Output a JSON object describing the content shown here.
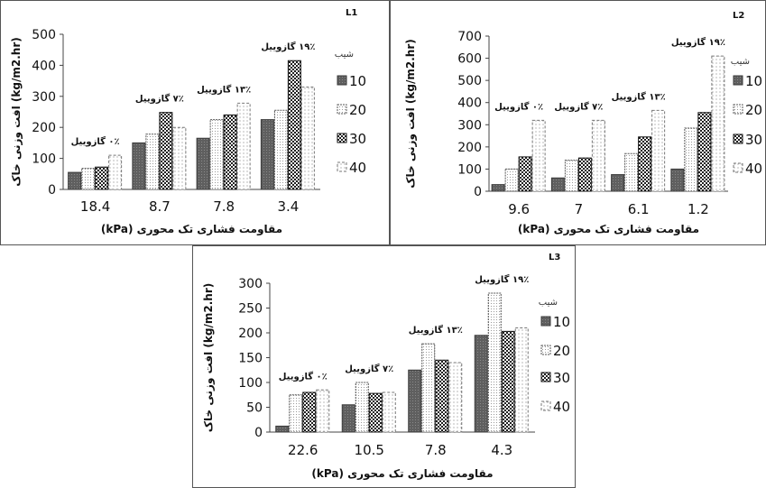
{
  "chart_data": [
    {
      "id": "L1",
      "type": "bar",
      "title": "L1",
      "ylabel": "افت وزنی خاک (kg/m2.hr)",
      "xlabel": "مقاومت فشاری تک محوری (kPa)",
      "legend_title": "شیب",
      "ylim": [
        0,
        500
      ],
      "yticks": [
        0,
        100,
        200,
        300,
        400,
        500
      ],
      "categories": [
        "18.4",
        "8.7",
        "7.8",
        "3.4"
      ],
      "annotations": [
        "۰٪ گازوییل",
        "۷٪ گازوییل",
        "۱۳٪ گازوییل",
        "۱۹٪ گازوییل"
      ],
      "series": [
        {
          "name": "10",
          "values": [
            55,
            150,
            165,
            225
          ]
        },
        {
          "name": "20",
          "values": [
            68,
            178,
            225,
            255
          ]
        },
        {
          "name": "30",
          "values": [
            72,
            248,
            240,
            415
          ]
        },
        {
          "name": "40",
          "values": [
            110,
            200,
            278,
            330
          ]
        }
      ]
    },
    {
      "id": "L2",
      "type": "bar",
      "title": "L2",
      "ylabel": "افت وزنی خاک (kg/m2.hr)",
      "xlabel": "مقاومت فشاری تک محوری (kPa)",
      "legend_title": "شیب",
      "ylim": [
        0,
        700
      ],
      "yticks": [
        0,
        100,
        200,
        300,
        400,
        500,
        600,
        700
      ],
      "categories": [
        "9.6",
        "7",
        "6.1",
        "1.2"
      ],
      "annotations": [
        "۰٪ گازوییل",
        "۷٪ گازوییل",
        "۱۳٪ گازوییل",
        "۱۹٪ گازوییل"
      ],
      "series": [
        {
          "name": "10",
          "values": [
            30,
            60,
            75,
            100
          ]
        },
        {
          "name": "20",
          "values": [
            100,
            140,
            170,
            285
          ]
        },
        {
          "name": "30",
          "values": [
            155,
            150,
            245,
            355
          ]
        },
        {
          "name": "40",
          "values": [
            320,
            320,
            365,
            610
          ]
        }
      ]
    },
    {
      "id": "L3",
      "type": "bar",
      "title": "L3",
      "ylabel": "افت وزنی خاک (kg/m2.hr)",
      "xlabel": "مقاومت فشاری تک محوری (kPa)",
      "legend_title": "شیب",
      "ylim": [
        0,
        300
      ],
      "yticks": [
        0,
        50,
        100,
        150,
        200,
        250,
        300
      ],
      "categories": [
        "22.6",
        "10.5",
        "7.8",
        "4.3"
      ],
      "annotations": [
        "۰٪ گازوییل",
        "۷٪ گازوییل",
        "۱۳٪ گازوییل",
        "۱۹٪ گازوییل"
      ],
      "series": [
        {
          "name": "10",
          "values": [
            12,
            55,
            125,
            195
          ]
        },
        {
          "name": "20",
          "values": [
            75,
            100,
            178,
            280
          ]
        },
        {
          "name": "30",
          "values": [
            80,
            78,
            145,
            203
          ]
        },
        {
          "name": "40",
          "values": [
            85,
            80,
            140,
            210
          ]
        }
      ]
    }
  ]
}
